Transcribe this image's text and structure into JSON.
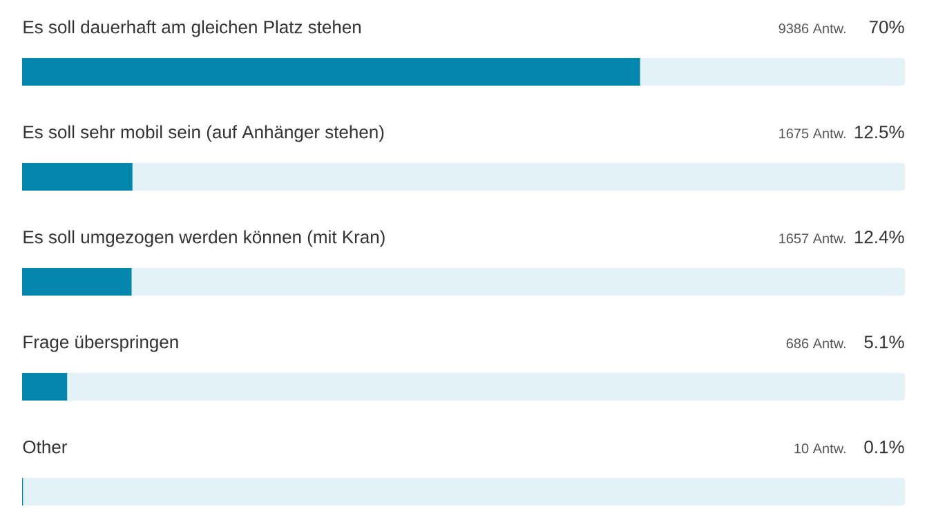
{
  "chart_data": {
    "type": "bar",
    "orientation": "horizontal",
    "categories": [
      "Es soll dauerhaft am gleichen Platz stehen",
      "Es soll sehr mobil sein (auf Anhänger stehen)",
      "Es soll umgezogen werden können (mit Kran)",
      "Frage überspringen",
      "Other"
    ],
    "values": [
      70,
      12.5,
      12.4,
      5.1,
      0.1
    ],
    "value_labels": [
      "70%",
      "12.5%",
      "12.4%",
      "5.1%",
      "0.1%"
    ],
    "annotations": [
      "9386 Antw.",
      "1675 Antw.",
      "1657 Antw.",
      "686 Antw.",
      "10 Antw."
    ],
    "color": "#0286ad",
    "xlim": [
      0,
      100
    ]
  }
}
